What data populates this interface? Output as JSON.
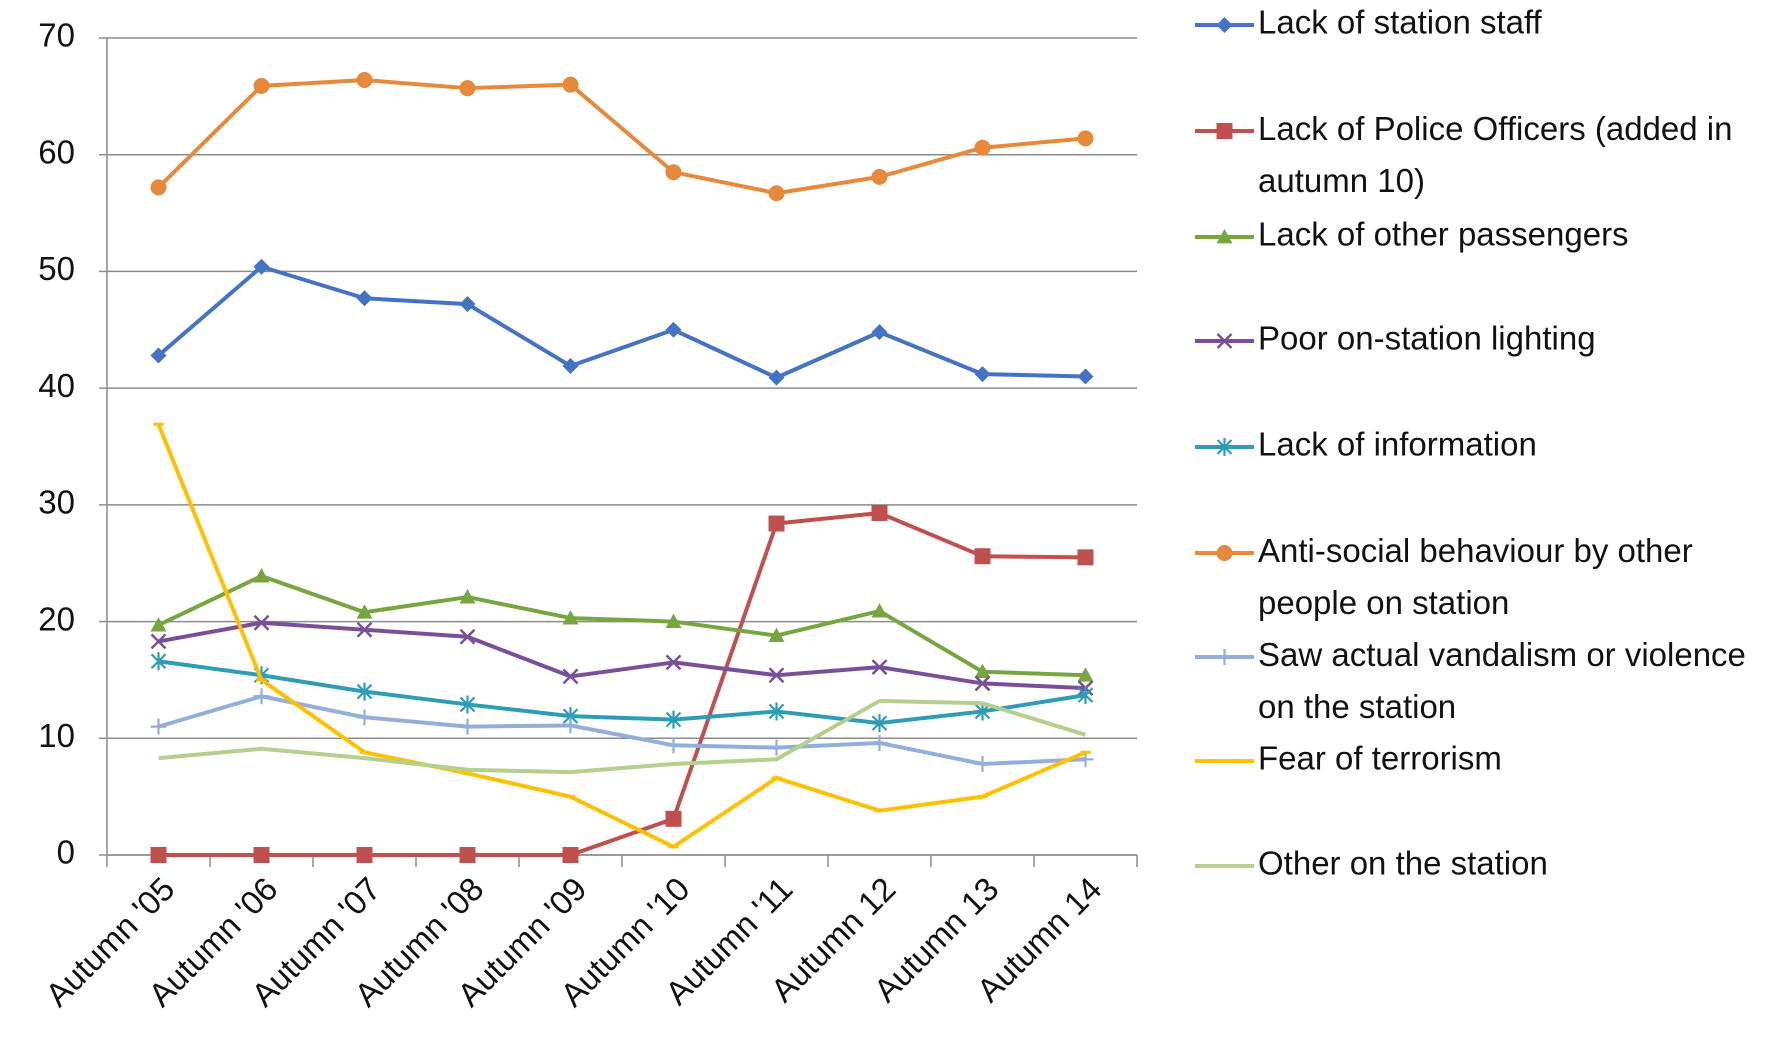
{
  "chart_data": {
    "type": "line",
    "categories": [
      "Autumn '05",
      "Autumn '06",
      "Autumn '07",
      "Autumn '08",
      "Autumn '09",
      "Autumn '10",
      "Autumn '11",
      "Autumn 12",
      "Autumn 13",
      "Autumn 14"
    ],
    "ylim": [
      0,
      70
    ],
    "yticks": [
      0,
      10,
      20,
      30,
      40,
      50,
      60,
      70
    ],
    "grid": true,
    "legend": "right",
    "series": [
      {
        "name": "Lack of station staff",
        "color": "#4472c4",
        "marker": "diamond",
        "values": [
          42.8,
          50.4,
          47.7,
          47.2,
          41.9,
          45.0,
          40.9,
          44.8,
          41.2,
          41.0
        ]
      },
      {
        "name": "Lack of Police Officers (added in autumn 10)",
        "color": "#c0504d",
        "marker": "square",
        "values": [
          0,
          0,
          0,
          0,
          0,
          3.1,
          28.4,
          29.3,
          25.6,
          25.5
        ]
      },
      {
        "name": "Lack of other passengers",
        "color": "#77a640",
        "marker": "triangle",
        "values": [
          19.7,
          23.9,
          20.8,
          22.1,
          20.3,
          20.0,
          18.8,
          20.9,
          15.7,
          15.4
        ]
      },
      {
        "name": "Poor on-station lighting",
        "color": "#7a4f9a",
        "marker": "x",
        "values": [
          18.3,
          19.9,
          19.3,
          18.7,
          15.3,
          16.5,
          15.4,
          16.1,
          14.7,
          14.3
        ]
      },
      {
        "name": "Lack of information",
        "color": "#2e9cb5",
        "marker": "asterisk",
        "values": [
          16.6,
          15.4,
          14.0,
          12.9,
          11.9,
          11.6,
          12.3,
          11.3,
          12.3,
          13.7
        ]
      },
      {
        "name": "Anti-social behaviour by other people on station",
        "color": "#e6893a",
        "marker": "circle",
        "values": [
          57.2,
          65.9,
          66.4,
          65.7,
          66.0,
          58.5,
          56.7,
          58.1,
          60.6,
          61.4
        ]
      },
      {
        "name": "Saw actual vandalism or violence on the station",
        "color": "#94aedb",
        "marker": "plus",
        "values": [
          11.0,
          13.6,
          11.8,
          11.0,
          11.1,
          9.4,
          9.2,
          9.6,
          7.8,
          8.2
        ]
      },
      {
        "name": "Fear of terrorism",
        "color": "#ffc000",
        "marker": "dash",
        "values": [
          36.9,
          15.0,
          8.8,
          7.0,
          5.0,
          0.7,
          6.6,
          3.8,
          5.0,
          8.8
        ]
      },
      {
        "name": "Other on the station",
        "color": "#b4cf8e",
        "marker": "none",
        "values": [
          8.3,
          9.1,
          8.3,
          7.3,
          7.1,
          7.8,
          8.2,
          13.2,
          13.0,
          10.3
        ]
      }
    ]
  }
}
